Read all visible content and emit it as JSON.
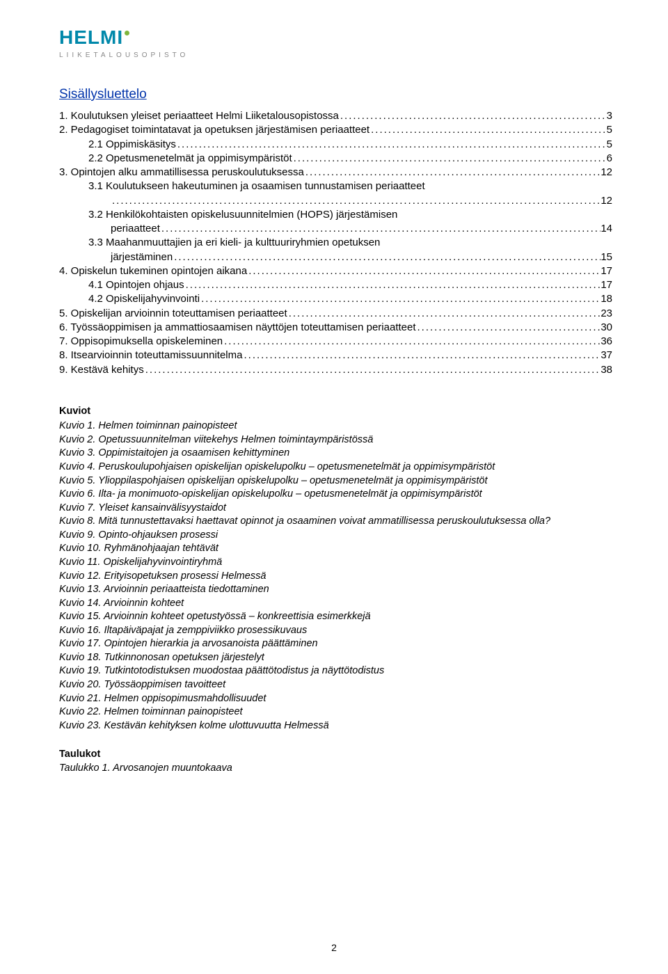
{
  "logo": {
    "main": "HELMI",
    "sub": "LIIKETALOUSOPISTO"
  },
  "tocTitle": "Sisällysluettelo",
  "toc": [
    {
      "indent": 0,
      "label": "1. Koulutuksen yleiset periaatteet Helmi Liiketalousopistossa",
      "page": "3"
    },
    {
      "indent": 0,
      "label": "2. Pedagogiset toimintatavat ja opetuksen järjestämisen periaatteet",
      "page": "5"
    },
    {
      "indent": 1,
      "label": "2.1 Oppimiskäsitys",
      "page": "5"
    },
    {
      "indent": 1,
      "label": "2.2 Opetusmenetelmät ja oppimisympäristöt",
      "page": "6"
    },
    {
      "indent": 0,
      "label": "3. Opintojen alku ammatillisessa peruskoulutuksessa",
      "page": "12"
    },
    {
      "indent": 1,
      "label": "3.1 Koulutukseen hakeutuminen ja osaamisen tunnustamisen periaatteet",
      "page": "12",
      "wrap": true
    },
    {
      "indent": 1,
      "label": "3.2 Henkilökohtaisten opiskelusuunnitelmien (HOPS) järjestämisen",
      "cont": "periaatteet",
      "page": "14"
    },
    {
      "indent": 1,
      "label": "3.3 Maahanmuuttajien ja eri kieli- ja kulttuuriryhmien opetuksen",
      "cont": "järjestäminen",
      "page": "15"
    },
    {
      "indent": 0,
      "label": "4. Opiskelun tukeminen opintojen aikana",
      "page": "17"
    },
    {
      "indent": 1,
      "label": "4.1 Opintojen ohjaus",
      "page": "17"
    },
    {
      "indent": 1,
      "label": "4.2 Opiskelijahyvinvointi",
      "page": "18"
    },
    {
      "indent": 0,
      "label": "5. Opiskelijan arvioinnin toteuttamisen periaatteet",
      "page": "23"
    },
    {
      "indent": 0,
      "label": "6. Työssäoppimisen ja ammattiosaamisen näyttöjen toteuttamisen periaatteet",
      "page": "30"
    },
    {
      "indent": 0,
      "label": "7. Oppisopimuksella opiskeleminen",
      "page": "36"
    },
    {
      "indent": 0,
      "label": "8. Itsearvioinnin toteuttamissuunnitelma",
      "page": "37"
    },
    {
      "indent": 0,
      "label": "9. Kestävä kehitys",
      "page": "38"
    }
  ],
  "kuviotHeading": "Kuviot",
  "kuviot": [
    "Kuvio 1. Helmen toiminnan painopisteet",
    "Kuvio 2. Opetussuunnitelman viitekehys Helmen toimintaympäristössä",
    "Kuvio 3. Oppimistaitojen ja osaamisen kehittyminen",
    "Kuvio 4. Peruskoulupohjaisen opiskelijan opiskelupolku – opetusmenetelmät ja oppimisympäristöt",
    "Kuvio 5. Ylioppilaspohjaisen opiskelijan opiskelupolku – opetusmenetelmät ja oppimisympäristöt",
    "Kuvio 6. Ilta- ja monimuoto-opiskelijan opiskelupolku – opetusmenetelmät ja oppimisympäristöt",
    "Kuvio 7. Yleiset kansainvälisyystaidot",
    "Kuvio 8. Mitä tunnustettavaksi haettavat opinnot ja osaaminen voivat ammatillisessa peruskoulutuksessa olla?",
    "Kuvio 9. Opinto-ohjauksen prosessi",
    "Kuvio 10. Ryhmänohjaajan tehtävät",
    "Kuvio 11. Opiskelijahyvinvointiryhmä",
    "Kuvio 12. Erityisopetuksen prosessi Helmessä",
    "Kuvio 13. Arvioinnin periaatteista tiedottaminen",
    "Kuvio 14. Arvioinnin kohteet",
    "Kuvio 15. Arvioinnin kohteet opetustyössä – konkreettisia esimerkkejä",
    "Kuvio 16. Iltapäiväpajat ja zemppiviikko prosessikuvaus",
    "Kuvio 17. Opintojen hierarkia ja arvosanoista päättäminen",
    "Kuvio 18. Tutkinnonosan opetuksen järjestelyt",
    "Kuvio 19. Tutkintotodistuksen muodostaa päättötodistus ja näyttötodistus",
    "Kuvio 20. Työssäoppimisen tavoitteet",
    "Kuvio 21. Helmen oppisopimusmahdollisuudet",
    "Kuvio 22. Helmen toiminnan painopisteet",
    "Kuvio 23. Kestävän kehityksen kolme ulottuvuutta Helmessä"
  ],
  "taulukotHeading": "Taulukot",
  "taulukot": [
    "Taulukko 1. Arvosanojen muuntokaava"
  ],
  "pageNumber": "2"
}
